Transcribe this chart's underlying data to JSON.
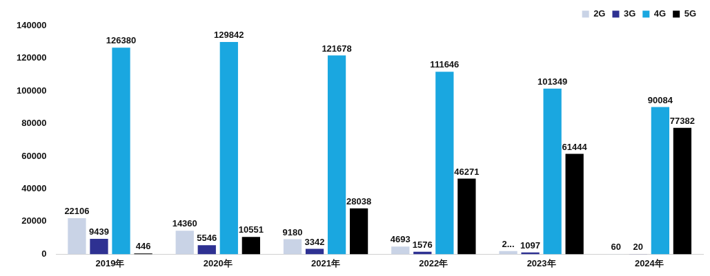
{
  "chart_data": {
    "type": "bar",
    "categories": [
      "2019年",
      "2020年",
      "2021年",
      "2022年",
      "2023年",
      "2024年"
    ],
    "series": [
      {
        "name": "2G",
        "color": "#c9d3e6",
        "values": [
          22106,
          14360,
          9180,
          4693,
          2000,
          60
        ],
        "value_labels": [
          "22106",
          "14360",
          "9180",
          "4693",
          "2...",
          "60"
        ]
      },
      {
        "name": "3G",
        "color": "#2e3192",
        "values": [
          9439,
          5546,
          3342,
          1576,
          1097,
          20
        ],
        "value_labels": [
          "9439",
          "5546",
          "3342",
          "1576",
          "1097",
          "20"
        ]
      },
      {
        "name": "4G",
        "color": "#1aa7e0",
        "values": [
          126380,
          129842,
          121678,
          111646,
          101349,
          90084
        ],
        "value_labels": [
          "126380",
          "129842",
          "121678",
          "111646",
          "101349",
          "90084"
        ]
      },
      {
        "name": "5G",
        "color": "#000000",
        "values": [
          446,
          10551,
          28038,
          46271,
          61444,
          77382
        ],
        "value_labels": [
          "446",
          "10551",
          "28038",
          "46271",
          "61444",
          "77382"
        ]
      }
    ],
    "ylim": [
      0,
      140000
    ],
    "yticks": [
      0,
      20000,
      40000,
      60000,
      80000,
      100000,
      120000,
      140000
    ],
    "grid": false,
    "legend": "top right"
  }
}
